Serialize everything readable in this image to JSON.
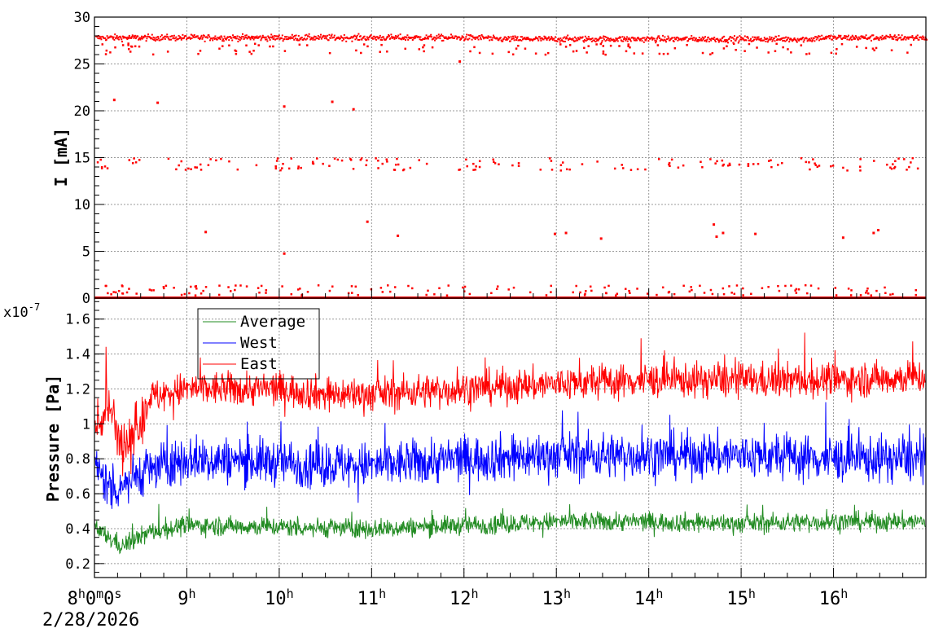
{
  "chart_data": [
    {
      "type": "scatter",
      "panel": "top",
      "ylabel": "I [mA]",
      "ylim": [
        0,
        30
      ],
      "yticks": [
        "0",
        "5",
        "10",
        "15",
        "20",
        "25",
        "30"
      ],
      "xlim_hours": [
        8,
        17
      ],
      "grid": true,
      "series": [
        {
          "color": "#ff0000",
          "bands": [
            {
              "level": 27.8,
              "spread": 0.35,
              "description": "dense main band"
            },
            {
              "level": 14.0,
              "spread": 0.6,
              "description": "sparse intermediate band"
            },
            {
              "level": 0.0,
              "spread": 0.05,
              "description": "dense zero band"
            }
          ],
          "outliers": [
            {
              "x": 8.21,
              "y": 21.2
            },
            {
              "x": 8.68,
              "y": 20.9
            },
            {
              "x": 10.05,
              "y": 20.5
            },
            {
              "x": 10.57,
              "y": 21.0
            },
            {
              "x": 10.8,
              "y": 20.2
            },
            {
              "x": 9.2,
              "y": 7.1
            },
            {
              "x": 10.05,
              "y": 4.8
            },
            {
              "x": 10.95,
              "y": 8.2
            },
            {
              "x": 11.28,
              "y": 6.7
            },
            {
              "x": 12.98,
              "y": 6.9
            },
            {
              "x": 13.1,
              "y": 7.0
            },
            {
              "x": 13.48,
              "y": 6.4
            },
            {
              "x": 14.7,
              "y": 7.9
            },
            {
              "x": 14.73,
              "y": 6.6
            },
            {
              "x": 14.8,
              "y": 7.0
            },
            {
              "x": 15.15,
              "y": 6.9
            },
            {
              "x": 16.1,
              "y": 6.5
            },
            {
              "x": 16.43,
              "y": 7.0
            },
            {
              "x": 16.48,
              "y": 7.3
            },
            {
              "x": 11.95,
              "y": 25.3
            }
          ]
        }
      ]
    },
    {
      "type": "line",
      "panel": "bottom",
      "ylabel": "Pressure [Pa]",
      "yexponent": "x10",
      "yexponent_power": "-7",
      "ylim": [
        0.12,
        1.72
      ],
      "yticks": [
        "0.2",
        "0.4",
        "0.6",
        "0.8",
        "1",
        "1.2",
        "1.4",
        "1.6"
      ],
      "xlim_hours": [
        8,
        17
      ],
      "xticks": [
        {
          "h": "8",
          "sup": "h",
          "rest": "0",
          "sup2": "m",
          "rest2": "0",
          "sup3": "s"
        },
        {
          "h": "9",
          "sup": "h"
        },
        {
          "h": "10",
          "sup": "h"
        },
        {
          "h": "11",
          "sup": "h"
        },
        {
          "h": "12",
          "sup": "h"
        },
        {
          "h": "13",
          "sup": "h"
        },
        {
          "h": "14",
          "sup": "h"
        },
        {
          "h": "15",
          "sup": "h"
        },
        {
          "h": "16",
          "sup": "h"
        }
      ],
      "date_label": "2/28/2026",
      "grid": true,
      "legend_position": "top-left",
      "series": [
        {
          "name": "Average",
          "color": "#228b22",
          "mean": [
            [
              8.0,
              0.4
            ],
            [
              8.3,
              0.3
            ],
            [
              8.6,
              0.38
            ],
            [
              9.0,
              0.42
            ],
            [
              11.0,
              0.4
            ],
            [
              12.0,
              0.42
            ],
            [
              13.0,
              0.44
            ],
            [
              14.0,
              0.44
            ],
            [
              15.0,
              0.43
            ],
            [
              16.0,
              0.44
            ],
            [
              17.0,
              0.44
            ]
          ],
          "noise": 0.05
        },
        {
          "name": "West",
          "color": "#0000ff",
          "mean": [
            [
              8.0,
              0.75
            ],
            [
              8.2,
              0.62
            ],
            [
              8.5,
              0.72
            ],
            [
              9.0,
              0.8
            ],
            [
              11.0,
              0.76
            ],
            [
              12.0,
              0.8
            ],
            [
              13.0,
              0.82
            ],
            [
              14.0,
              0.82
            ],
            [
              15.0,
              0.82
            ],
            [
              16.0,
              0.8
            ],
            [
              17.0,
              0.8
            ]
          ],
          "noise": 0.12
        },
        {
          "name": "East",
          "color": "#ff0000",
          "mean": [
            [
              8.0,
              0.95
            ],
            [
              8.15,
              1.1
            ],
            [
              8.3,
              0.88
            ],
            [
              8.5,
              1.0
            ],
            [
              8.6,
              1.15
            ],
            [
              9.0,
              1.2
            ],
            [
              10.0,
              1.2
            ],
            [
              10.5,
              1.17
            ],
            [
              11.0,
              1.17
            ],
            [
              12.0,
              1.2
            ],
            [
              13.0,
              1.23
            ],
            [
              14.0,
              1.25
            ],
            [
              15.0,
              1.25
            ],
            [
              16.0,
              1.25
            ],
            [
              17.0,
              1.27
            ]
          ],
          "noise": 0.09
        }
      ]
    }
  ]
}
